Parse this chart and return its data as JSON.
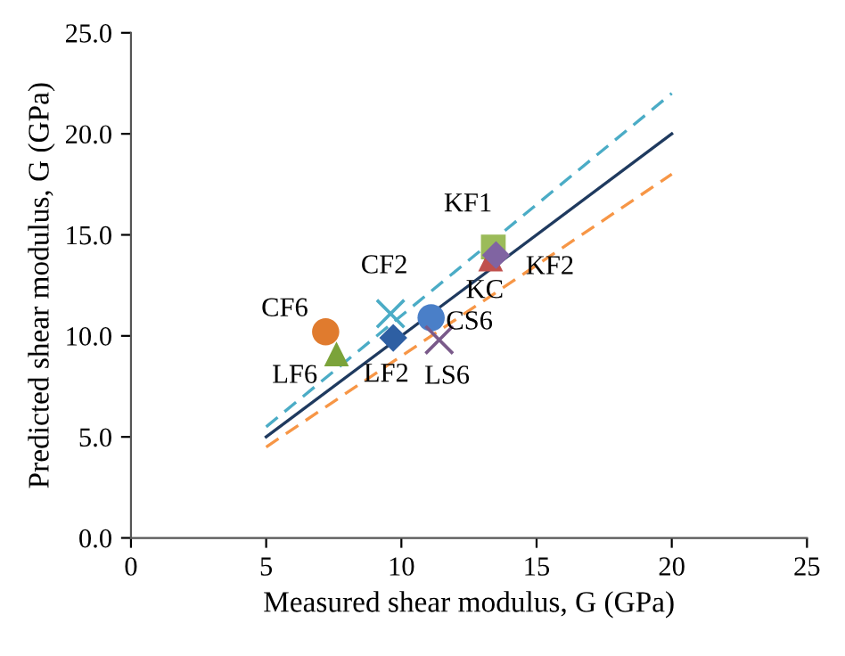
{
  "chart_data": {
    "type": "scatter",
    "xlabel": "Measured shear modulus, G (GPa)",
    "ylabel": "Predicted shear modulus, G (GPa)",
    "xlim": [
      0,
      25
    ],
    "xticks": [
      0,
      5,
      10,
      15,
      20,
      25
    ],
    "ylim": [
      0,
      25
    ],
    "yticks": [
      {
        "value": 0,
        "label": "0.0"
      },
      {
        "value": 5,
        "label": "5.0"
      },
      {
        "value": 10,
        "label": "10.0"
      },
      {
        "value": 15,
        "label": "15.0"
      },
      {
        "value": 20,
        "label": "20.0"
      },
      {
        "value": 25,
        "label": "25.0"
      }
    ],
    "grid": false,
    "legend": false,
    "series": [
      {
        "type": "line",
        "x": [
          5,
          20
        ],
        "values": [
          5,
          20
        ],
        "color": "#1f3a5f",
        "line_style": "solid",
        "marker": "none"
      },
      {
        "type": "line",
        "x": [
          5,
          20
        ],
        "values": [
          5.5,
          22
        ],
        "color": "#4bacc6",
        "line_style": "dashed",
        "marker": "none"
      },
      {
        "type": "line",
        "x": [
          5,
          20
        ],
        "values": [
          4.5,
          18
        ],
        "color": "#f79646",
        "line_style": "dashed",
        "marker": "none"
      },
      {
        "name": "CF6",
        "x": [
          7.2
        ],
        "values": [
          10.2
        ],
        "color": "#e07b2e",
        "marker": "circle"
      },
      {
        "name": "LF6",
        "x": [
          7.6
        ],
        "values": [
          9.1
        ],
        "color": "#7ba33a",
        "marker": "triangle"
      },
      {
        "name": "CF2",
        "x": [
          9.6
        ],
        "values": [
          11.1
        ],
        "color": "#4bacc6",
        "marker": "cross"
      },
      {
        "name": "LF2",
        "x": [
          9.7
        ],
        "values": [
          9.9
        ],
        "color": "#2e5fa3",
        "marker": "diamond"
      },
      {
        "name": "CS6",
        "x": [
          11.1
        ],
        "values": [
          10.9
        ],
        "color": "#4a7fc8",
        "marker": "circle"
      },
      {
        "name": "LS6",
        "x": [
          11.4
        ],
        "values": [
          9.8
        ],
        "color": "#7a5a8a",
        "marker": "cross"
      },
      {
        "name": "KF1",
        "x": [
          13.4
        ],
        "values": [
          14.4
        ],
        "color": "#9bbb59",
        "marker": "square"
      },
      {
        "name": "KC",
        "x": [
          13.3
        ],
        "values": [
          13.8
        ],
        "color": "#c0504d",
        "marker": "triangle"
      },
      {
        "name": "KF2",
        "x": [
          13.5
        ],
        "values": [
          14.0
        ],
        "color": "#8064a2",
        "marker": "diamond"
      }
    ]
  }
}
